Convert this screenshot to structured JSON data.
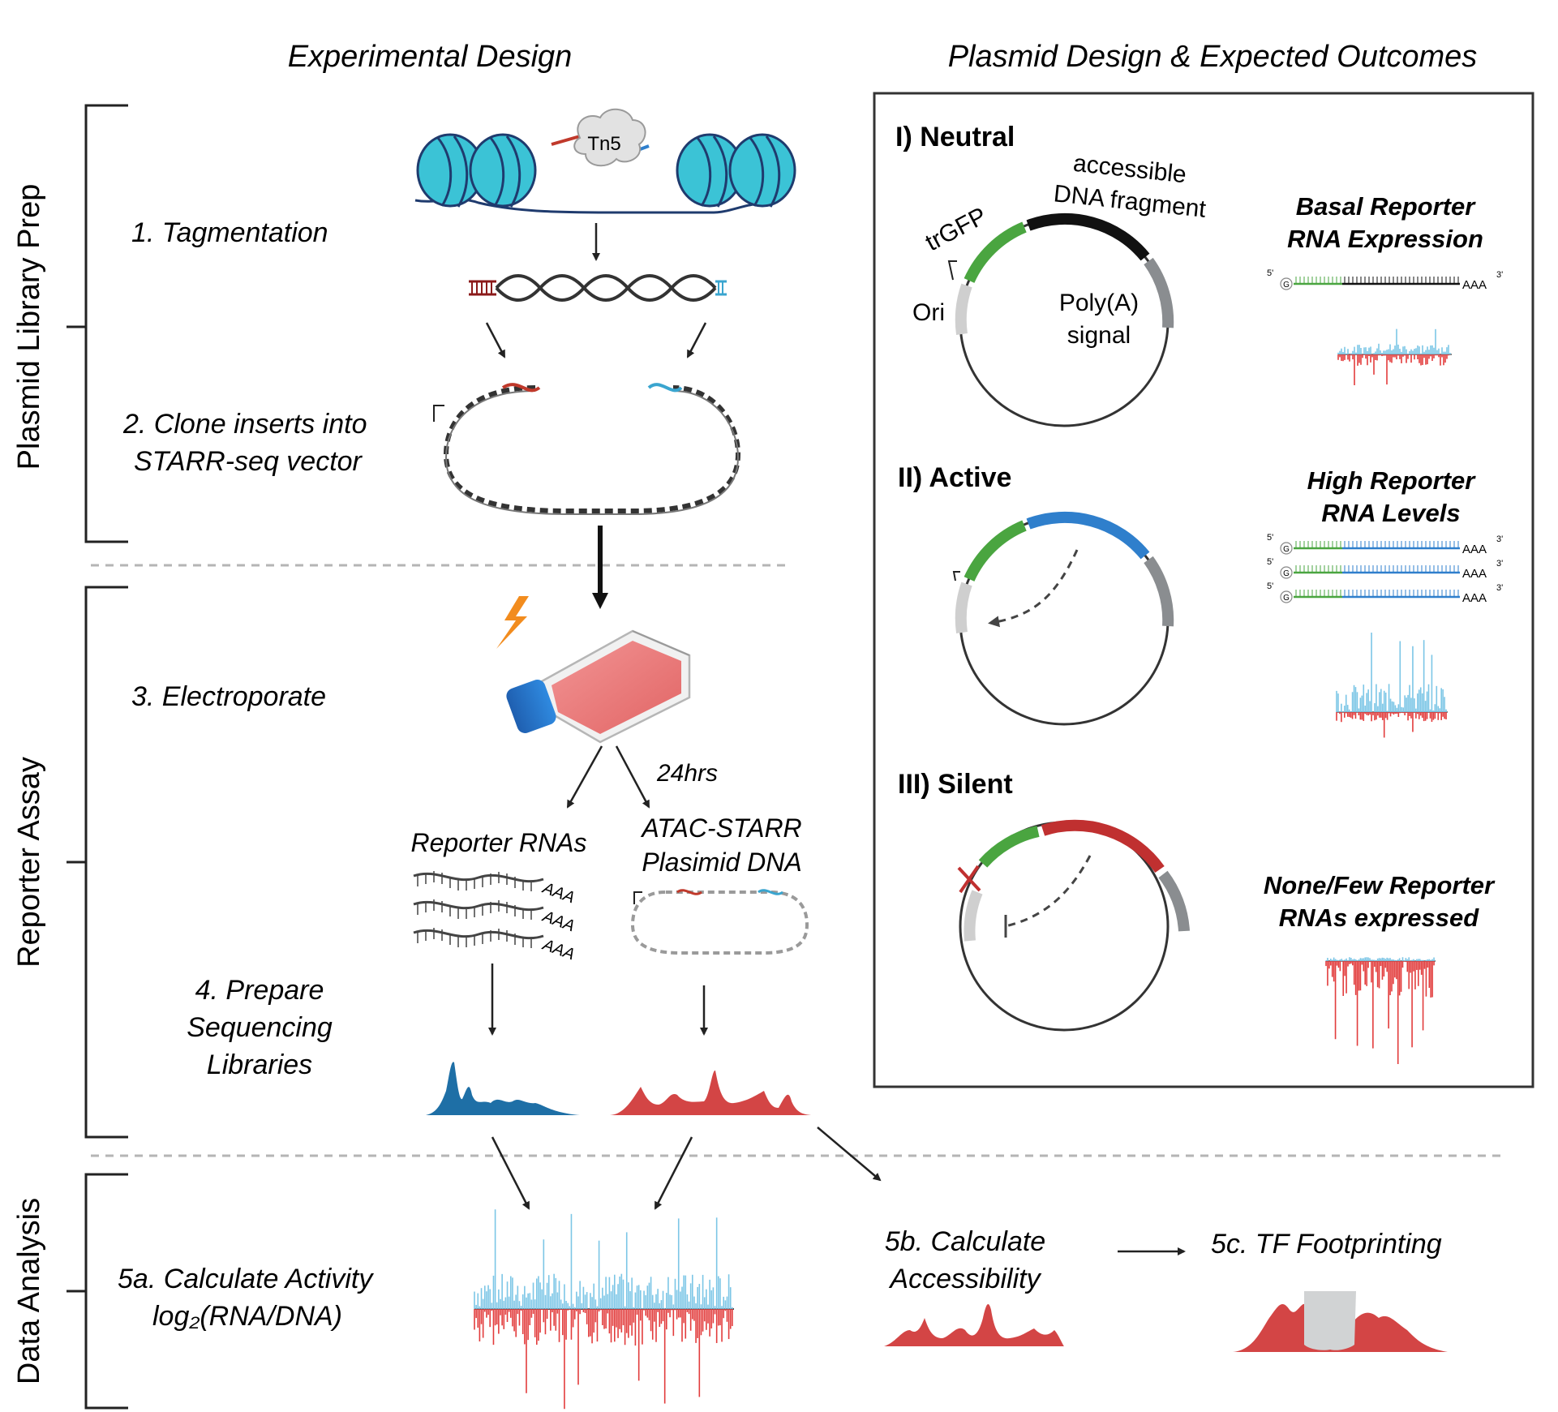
{
  "headers": {
    "left": "Experimental Design",
    "right": "Plasmid Design & Expected Outcomes"
  },
  "sections": {
    "prep": "Plasmid Library Prep",
    "assay": "Reporter Assay",
    "analysis": "Data Analysis"
  },
  "steps": {
    "s1": "1. Tagmentation",
    "s2_l1": "2. Clone inserts into",
    "s2_l2": "STARR-seq vector",
    "s3": "3. Electroporate",
    "s4_l1": "4. Prepare",
    "s4_l2": "Sequencing",
    "s4_l3": "Libraries",
    "s5a_l1": "5a. Calculate Activity",
    "s5a_l2": "log₂(RNA/DNA)",
    "s5b_l1": "5b. Calculate",
    "s5b_l2": "Accessibility",
    "s5c": "5c. TF Footprinting"
  },
  "labels": {
    "tn5": "Tn5",
    "hrs": "24hrs",
    "reporter_rnas": "Reporter RNAs",
    "atac_l1": "ATAC-STARR",
    "atac_l2": "Plasimid DNA",
    "aaa": "AAA"
  },
  "panels": {
    "neutral": "I) Neutral",
    "active": "II) Active",
    "silent": "III) Silent",
    "plasmid": {
      "trgfp": "trGFP",
      "ori": "Ori",
      "frag_l1": "accessible",
      "frag_l2": "DNA fragment",
      "polya_l1": "Poly(A)",
      "polya_l2": "signal"
    },
    "outcomes": {
      "neutral_l1": "Basal Reporter",
      "neutral_l2": "RNA Expression",
      "active_l1": "High Reporter",
      "active_l2": "RNA Levels",
      "silent_l1": "None/Few Reporter",
      "silent_l2": "RNAs expressed"
    },
    "transcript": {
      "five": "5'",
      "three": "3'",
      "cap": "G",
      "tail": "AAA"
    }
  },
  "colors": {
    "nucleosome": "#3bc3d6",
    "gfp": "#4aa540",
    "fragment_neutral": "#111111",
    "fragment_active": "#2f7fcc",
    "fragment_silent": "#c03030",
    "rna_blue": "#1e6fa6",
    "dna_red": "#d34545",
    "signal_blue": "#7cc6e6",
    "signal_red": "#e23c3c",
    "bolt": "#f28c1e",
    "ori": "#cfcfcf",
    "polya": "#8a8d90"
  }
}
